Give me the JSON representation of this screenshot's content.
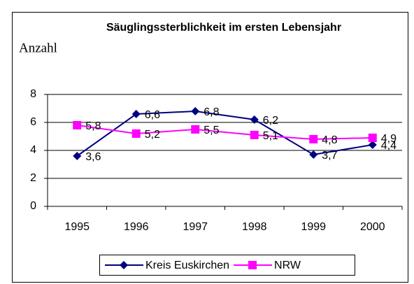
{
  "chart_data": {
    "type": "line",
    "title": "Säuglingssterblichkeit im ersten Lebensjahr",
    "y_label": "Anzahl",
    "categories": [
      "1995",
      "1996",
      "1997",
      "1998",
      "1999",
      "2000"
    ],
    "series": [
      {
        "name": "Kreis Euskirchen",
        "color": "#000080",
        "marker": "diamond",
        "values": [
          3.6,
          6.6,
          6.8,
          6.2,
          3.7,
          4.4
        ],
        "value_labels": [
          "3,6",
          "6,6",
          "6,8",
          "6,2",
          "3,7",
          "4,4"
        ]
      },
      {
        "name": "NRW",
        "color": "#ff00ff",
        "marker": "square",
        "values": [
          5.8,
          5.2,
          5.5,
          5.1,
          4.8,
          4.9
        ],
        "value_labels": [
          "5,8",
          "5,2",
          "5,5",
          "5,1",
          "4,8",
          "4,9"
        ]
      }
    ],
    "ylim": [
      0,
      8
    ],
    "yticks": [
      0,
      2,
      4,
      6,
      8
    ],
    "grid": true,
    "legend": "bottom"
  }
}
